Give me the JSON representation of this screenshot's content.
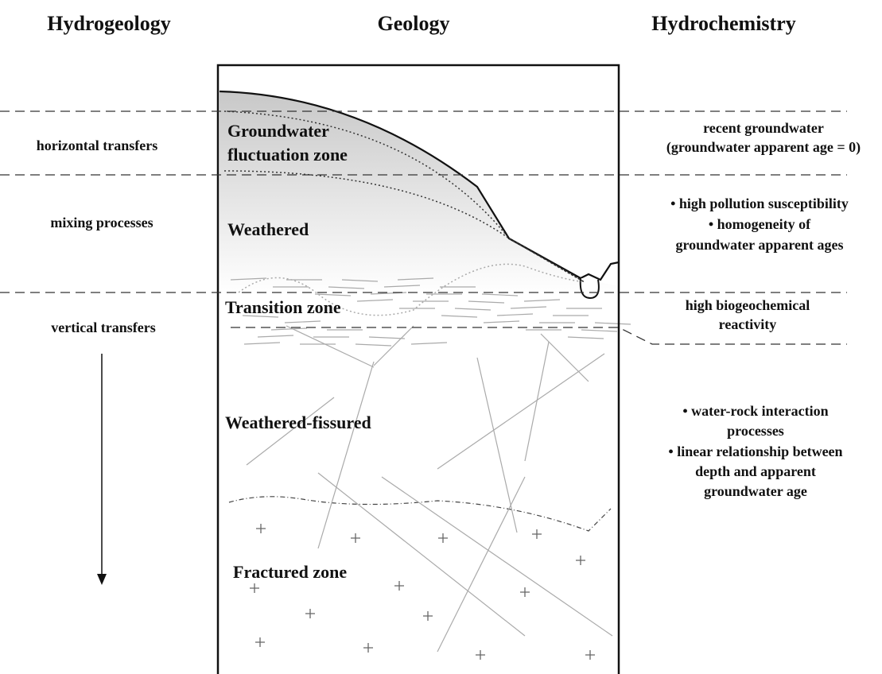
{
  "headers": {
    "hydrogeology": "Hydrogeology",
    "geology": "Geology",
    "hydrochemistry": "Hydrochemistry"
  },
  "hydrogeology": [
    "horizontal transfers",
    "mixing processes",
    "vertical transfers"
  ],
  "geology": [
    [
      "Groundwater",
      "fluctuation zone"
    ],
    [
      "Weathered"
    ],
    [
      "Transition zone"
    ],
    [
      "Weathered-fissured"
    ],
    [
      "Fractured zone"
    ]
  ],
  "hydrochemistry": [
    [
      "recent groundwater",
      "(groundwater apparent age = 0)"
    ],
    [
      "•  high pollution susceptibility",
      "•  homogeneity of",
      "groundwater apparent ages"
    ],
    [
      "high biogeochemical",
      "reactivity"
    ],
    [
      "•  water-rock interaction",
      "processes",
      "•  linear relationship between",
      "depth and apparent",
      "groundwater age"
    ]
  ]
}
